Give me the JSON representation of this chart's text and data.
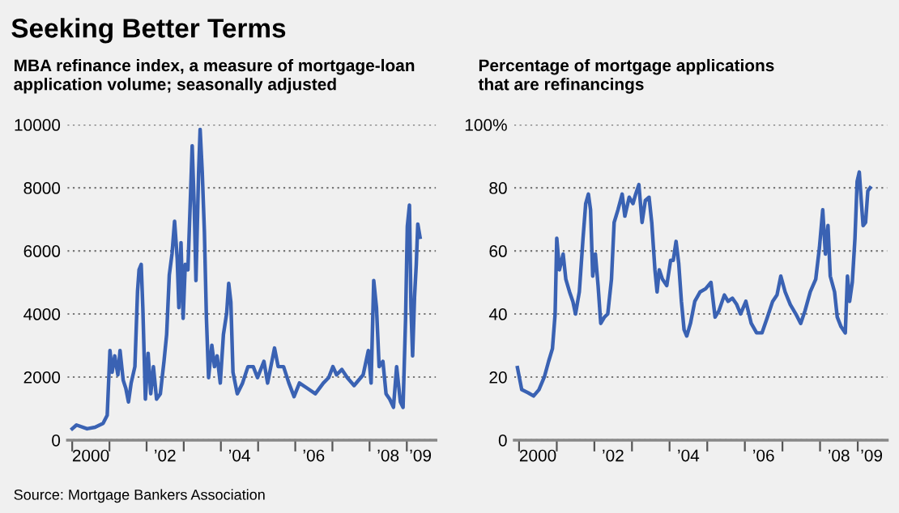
{
  "chart_data": [
    {
      "type": "line",
      "title": "Seeking Better Terms",
      "subtitle": "MBA refinance index, a measure of mortgage-loan\napplication volume; seasonally adjusted",
      "annotations": [
        "Source: Mortgage Bankers Association"
      ],
      "color": "#3a62b3",
      "grid": "y",
      "line_style": "solid",
      "xlim": [
        "1999-11-15",
        "2009-10-15"
      ],
      "ylim": [
        0,
        10000
      ],
      "yticks": [
        0,
        2000,
        4000,
        6000,
        8000,
        10000
      ],
      "xticks": [
        {
          "value": "2000-01-01",
          "label": null
        },
        {
          "value": "2001-01-01",
          "label": null
        },
        {
          "value": "2002-01-01",
          "label": null
        },
        {
          "value": "2003-01-01",
          "label": null
        },
        {
          "value": "2004-01-01",
          "label": null
        },
        {
          "value": "2005-01-01",
          "label": null
        },
        {
          "value": "2006-01-01",
          "label": null
        },
        {
          "value": "2007-01-01",
          "label": null
        },
        {
          "value": "2008-01-01",
          "label": null
        },
        {
          "value": "2009-01-01",
          "label": null
        },
        {
          "value": "2000-07-01",
          "label": "2000"
        },
        {
          "value": "2002-07-01",
          "label": "’02"
        },
        {
          "value": "2004-07-01",
          "label": "’04"
        },
        {
          "value": "2006-07-01",
          "label": "’06"
        },
        {
          "value": "2008-07-01",
          "label": "’08"
        },
        {
          "value": "2009-05-15",
          "label": "’09"
        }
      ],
      "x": [
        "2000-01-01",
        "2000-02-12",
        "2000-05-26",
        "2000-08-13",
        "2000-10-30",
        "2000-12-10",
        "2001-01-06",
        "2001-01-27",
        "2001-02-22",
        "2001-03-25",
        "2001-04-15",
        "2001-05-16",
        "2001-06-11",
        "2001-07-07",
        "2001-08-02",
        "2001-09-08",
        "2001-10-04",
        "2001-10-19",
        "2001-11-09",
        "2001-11-25",
        "2001-12-20",
        "2002-01-16",
        "2002-02-11",
        "2002-03-09",
        "2002-04-09",
        "2002-05-16",
        "2002-06-21",
        "2002-07-17",
        "2002-08-12",
        "2002-09-08",
        "2002-10-03",
        "2002-10-29",
        "2002-11-14",
        "2002-12-05",
        "2002-12-26",
        "2003-01-16",
        "2003-02-11",
        "2003-03-09",
        "2003-03-25",
        "2003-04-15",
        "2003-05-01",
        "2003-05-27",
        "2003-06-11",
        "2003-07-02",
        "2003-07-23",
        "2003-08-12",
        "2003-09-02",
        "2003-10-04",
        "2003-10-30",
        "2003-11-25",
        "2003-12-26",
        "2004-01-26",
        "2004-02-27",
        "2004-03-18",
        "2004-04-08",
        "2004-04-29",
        "2004-06-10",
        "2004-08-01",
        "2004-09-23",
        "2004-11-14",
        "2004-12-26",
        "2005-02-27",
        "2005-04-04",
        "2005-06-11",
        "2005-07-17",
        "2005-09-08",
        "2005-10-30",
        "2005-12-20",
        "2006-02-11",
        "2006-05-01",
        "2006-07-17",
        "2006-10-04",
        "2006-11-25",
        "2007-01-06",
        "2007-02-11",
        "2007-04-04",
        "2007-05-27",
        "2007-08-02",
        "2007-10-30",
        "2007-12-20",
        "2008-01-16",
        "2008-02-11",
        "2008-03-09",
        "2008-04-04",
        "2008-05-11",
        "2008-06-11",
        "2008-07-17",
        "2008-08-23",
        "2008-09-23",
        "2008-10-30",
        "2008-11-25",
        "2008-12-20",
        "2009-01-06",
        "2009-01-27",
        "2009-02-11",
        "2009-02-27",
        "2009-03-18",
        "2009-04-04",
        "2009-04-19",
        "2009-05-11"
      ],
      "values": [
        360,
        480,
        360,
        410,
        530,
        790,
        2840,
        2150,
        2670,
        2070,
        2840,
        1900,
        1640,
        1210,
        1810,
        2330,
        4720,
        5400,
        5570,
        4200,
        1300,
        2750,
        1470,
        2330,
        1300,
        1470,
        2500,
        3350,
        5230,
        5910,
        6940,
        5740,
        4200,
        6260,
        3860,
        5570,
        5400,
        7800,
        9330,
        7290,
        5060,
        8480,
        9850,
        8480,
        6600,
        3860,
        1980,
        3010,
        2330,
        2670,
        1810,
        3350,
        4030,
        4970,
        4370,
        2150,
        1470,
        1810,
        2330,
        2330,
        1980,
        2500,
        1810,
        2920,
        2330,
        2330,
        1810,
        1380,
        1810,
        1640,
        1470,
        1810,
        1980,
        2330,
        2070,
        2240,
        1980,
        1730,
        2070,
        2840,
        1810,
        5060,
        4200,
        2330,
        2500,
        1470,
        1300,
        1040,
        2330,
        1210,
        1040,
        3860,
        6770,
        7450,
        4200,
        2670,
        4550,
        5570,
        6850,
        6430
      ]
    },
    {
      "type": "line",
      "subtitle": "Percentage of mortgage applications\nthat are refinancings",
      "color": "#3a62b3",
      "grid": "y",
      "line_style": "solid",
      "xlim": [
        "1999-11-15",
        "2009-10-15"
      ],
      "ylim": [
        0,
        100
      ],
      "yticks": [
        0,
        20,
        40,
        60,
        80,
        {
          "value": 100,
          "label": "100%"
        }
      ],
      "xticks": [
        {
          "value": "2000-01-01",
          "label": null
        },
        {
          "value": "2001-01-01",
          "label": null
        },
        {
          "value": "2002-01-01",
          "label": null
        },
        {
          "value": "2003-01-01",
          "label": null
        },
        {
          "value": "2004-01-01",
          "label": null
        },
        {
          "value": "2005-01-01",
          "label": null
        },
        {
          "value": "2006-01-01",
          "label": null
        },
        {
          "value": "2007-01-01",
          "label": null
        },
        {
          "value": "2008-01-01",
          "label": null
        },
        {
          "value": "2009-01-01",
          "label": null
        },
        {
          "value": "2000-07-01",
          "label": "2000"
        },
        {
          "value": "2002-07-01",
          "label": "’02"
        },
        {
          "value": "2004-07-01",
          "label": "’04"
        },
        {
          "value": "2006-07-01",
          "label": "’06"
        },
        {
          "value": "2008-07-01",
          "label": "’08"
        },
        {
          "value": "2009-05-15",
          "label": "’09"
        }
      ],
      "x": [
        "1999-12-16",
        "2000-01-27",
        "2000-03-30",
        "2000-05-21",
        "2000-07-12",
        "2000-09-02",
        "2000-10-14",
        "2000-11-20",
        "2000-12-16",
        "2001-01-01",
        "2001-01-27",
        "2001-03-04",
        "2001-03-30",
        "2001-05-05",
        "2001-06-06",
        "2001-07-02",
        "2001-08-08",
        "2001-09-13",
        "2001-10-09",
        "2001-11-04",
        "2001-11-25",
        "2001-12-16",
        "2002-01-11",
        "2002-02-06",
        "2002-03-04",
        "2002-04-09",
        "2002-05-11",
        "2002-06-16",
        "2002-07-12",
        "2002-08-18",
        "2002-09-28",
        "2002-10-24",
        "2002-12-05",
        "2003-01-11",
        "2003-02-06",
        "2003-03-09",
        "2003-04-09",
        "2003-05-11",
        "2003-06-16",
        "2003-07-12",
        "2003-08-12",
        "2003-09-02",
        "2003-09-23",
        "2003-10-24",
        "2003-12-05",
        "2004-01-11",
        "2004-02-06",
        "2004-03-04",
        "2004-03-30",
        "2004-04-25",
        "2004-05-21",
        "2004-06-16",
        "2004-07-22",
        "2004-09-02",
        "2004-10-24",
        "2004-12-16",
        "2005-02-06",
        "2005-03-18",
        "2005-04-24",
        "2005-06-16",
        "2005-07-22",
        "2005-09-02",
        "2005-10-14",
        "2005-11-20",
        "2006-01-11",
        "2006-03-04",
        "2006-04-25",
        "2006-06-16",
        "2006-08-08",
        "2006-09-28",
        "2006-11-09",
        "2006-12-16",
        "2007-01-27",
        "2007-03-18",
        "2007-05-11",
        "2007-06-27",
        "2007-08-08",
        "2007-09-28",
        "2007-11-20",
        "2007-12-26",
        "2008-01-27",
        "2008-02-22",
        "2008-03-18",
        "2008-04-09",
        "2008-05-21",
        "2008-06-16",
        "2008-07-22",
        "2008-09-02",
        "2008-09-23",
        "2008-10-14",
        "2008-11-09",
        "2008-12-05",
        "2008-12-26",
        "2009-01-16",
        "2009-02-06",
        "2009-02-22",
        "2009-03-18",
        "2009-04-09",
        "2009-05-01"
      ],
      "values": [
        23,
        16,
        15,
        14,
        16,
        20,
        25,
        29,
        40,
        64,
        54,
        59,
        51,
        47,
        44,
        40,
        47,
        64,
        75,
        78,
        73,
        52,
        59,
        49,
        37,
        39,
        40,
        51,
        69,
        73,
        78,
        71,
        77,
        75,
        78,
        81,
        69,
        76,
        77,
        69,
        54,
        47,
        54,
        51,
        49,
        57,
        57,
        63,
        56,
        44,
        35,
        33,
        37,
        44,
        47,
        48,
        50,
        39,
        41,
        46,
        44,
        45,
        43,
        40,
        44,
        37,
        34,
        34,
        39,
        44,
        46,
        52,
        47,
        43,
        40,
        37,
        41,
        47,
        51,
        61,
        73,
        59,
        68,
        52,
        47,
        39,
        36,
        34,
        52,
        44,
        50,
        64,
        82,
        85,
        75,
        68,
        69,
        79,
        80
      ]
    }
  ]
}
